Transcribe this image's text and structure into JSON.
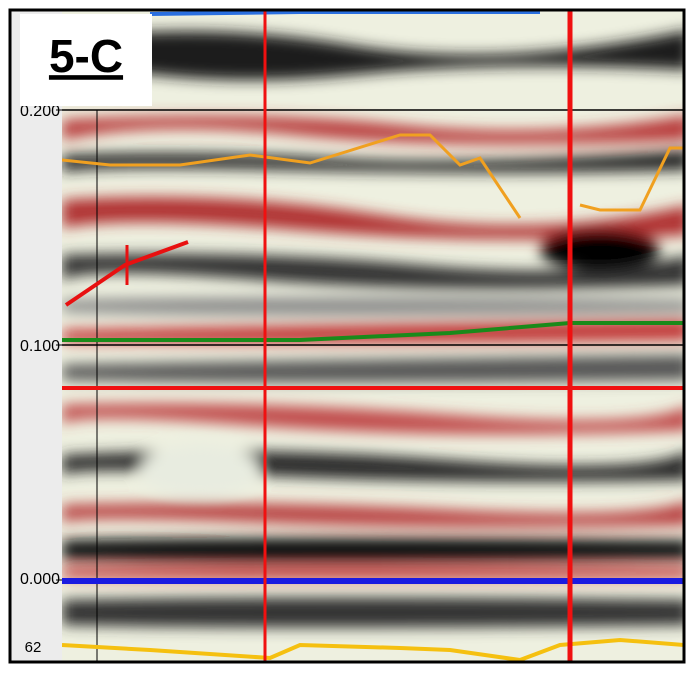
{
  "panel_label": "5-C",
  "y_axis": {
    "ticks": [
      "0.200",
      "0.100",
      "0.000"
    ]
  },
  "trace_label": "62"
}
